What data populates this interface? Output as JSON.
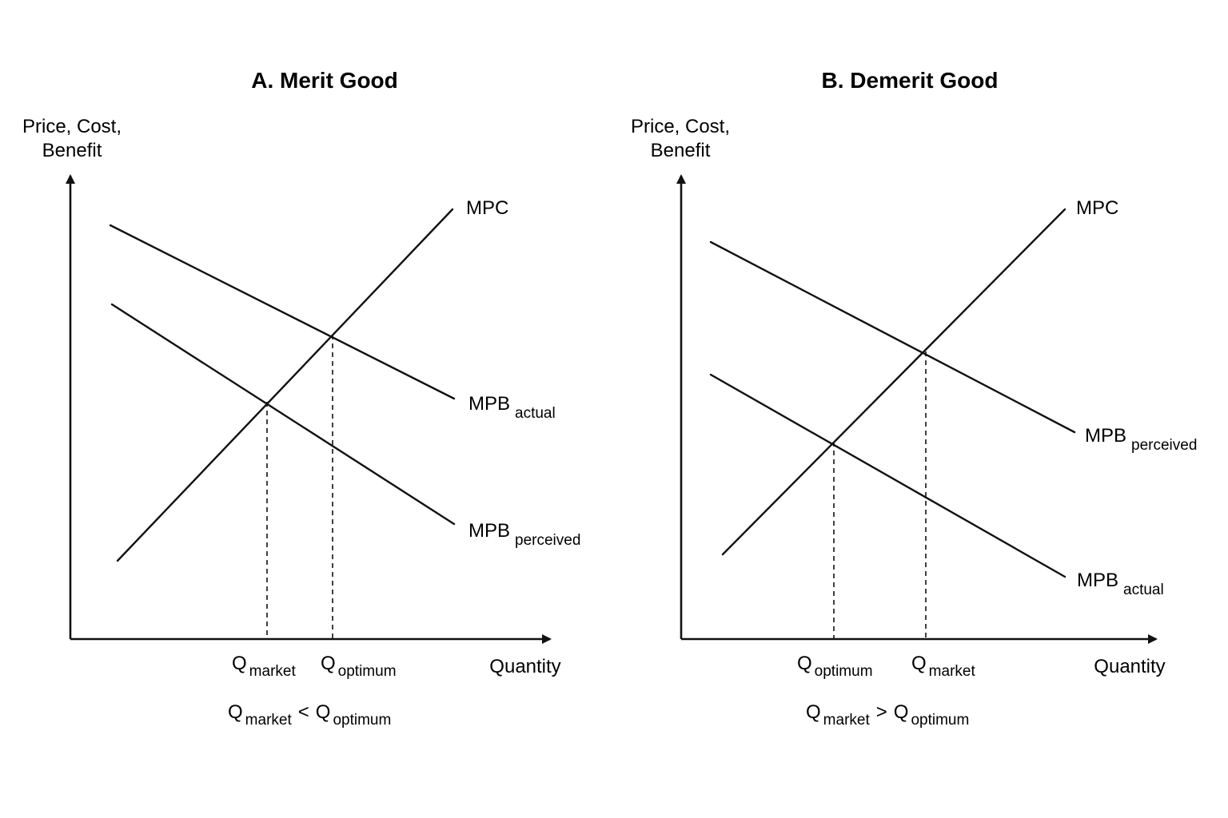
{
  "panel_a": {
    "title": "A. Merit Good",
    "y_axis_line1": "Price, Cost,",
    "y_axis_line2": "Benefit",
    "x_axis": "Quantity",
    "mpc": "MPC",
    "upper_curve_main": "MPB",
    "upper_curve_sub": "actual",
    "lower_curve_main": "MPB",
    "lower_curve_sub": "perceived",
    "q_left_main": "Q",
    "q_left_sub": "market",
    "q_right_main": "Q",
    "q_right_sub": "optimum",
    "rel_q1": "Q",
    "rel_s1": "market",
    "rel_op": "<",
    "rel_q2": "Q",
    "rel_s2": "optimum"
  },
  "panel_b": {
    "title": "B. Demerit Good",
    "y_axis_line1": "Price, Cost,",
    "y_axis_line2": "Benefit",
    "x_axis": "Quantity",
    "mpc": "MPC",
    "upper_curve_main": "MPB",
    "upper_curve_sub": "perceived",
    "lower_curve_main": "MPB",
    "lower_curve_sub": "actual",
    "q_left_main": "Q",
    "q_left_sub": "optimum",
    "q_right_main": "Q",
    "q_right_sub": "market",
    "rel_q1": "Q",
    "rel_s1": "market",
    "rel_op": ">",
    "rel_q2": "Q",
    "rel_s2": "optimum"
  }
}
